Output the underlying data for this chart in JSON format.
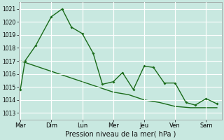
{
  "background_color": "#c8e8e0",
  "grid_color": "#b0d8d0",
  "line_color": "#1a6b1a",
  "x_labels": [
    "Mar",
    "Dim",
    "Lun",
    "Mer",
    "Jeu",
    "Ven",
    "Sam"
  ],
  "ylabel": "Pression niveau de la mer( hPa )",
  "ylim": [
    1012.5,
    1021.5
  ],
  "yticks": [
    1013,
    1014,
    1015,
    1016,
    1017,
    1018,
    1019,
    1020,
    1021
  ],
  "series1_x": [
    0.0,
    0.15,
    0.5,
    1.0,
    1.35,
    1.65,
    2.0,
    2.35,
    2.65,
    3.0,
    3.3,
    3.65,
    4.0,
    4.3,
    4.65,
    5.0,
    5.35,
    5.65,
    6.0,
    6.35
  ],
  "series1_y": [
    1014.8,
    1017.0,
    1018.2,
    1020.4,
    1021.0,
    1019.6,
    1019.1,
    1017.6,
    1015.2,
    1015.4,
    1016.1,
    1014.8,
    1016.6,
    1016.5,
    1015.3,
    1015.3,
    1013.8,
    1013.6,
    1014.1,
    1013.7
  ],
  "series2_x": [
    0.0,
    0.5,
    1.0,
    1.5,
    2.0,
    2.5,
    3.0,
    3.5,
    4.0,
    4.5,
    5.0,
    5.5,
    6.0,
    6.35
  ],
  "series2_y": [
    1017.0,
    1016.6,
    1016.2,
    1015.8,
    1015.4,
    1015.0,
    1014.6,
    1014.4,
    1014.0,
    1013.8,
    1013.5,
    1013.4,
    1013.4,
    1013.4
  ]
}
